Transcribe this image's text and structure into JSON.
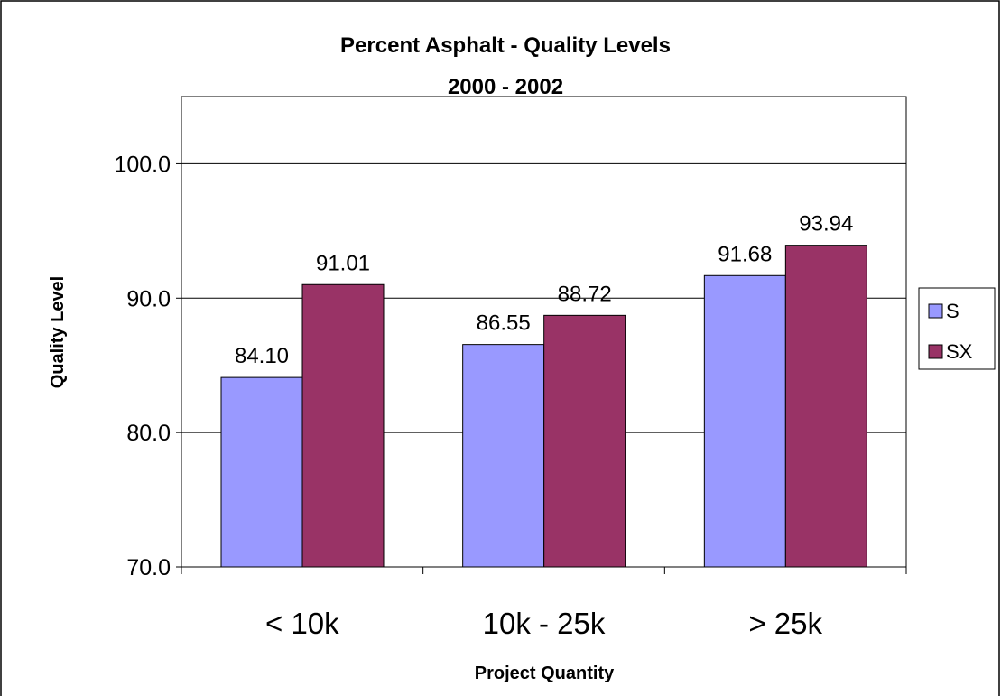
{
  "chart_data": {
    "type": "bar",
    "title": "Percent Asphalt - Quality Levels",
    "subtitle": "2000 - 2002",
    "xlabel": "Project Quantity",
    "ylabel": "Quality Level",
    "categories": [
      "< 10k",
      "10k - 25k",
      "> 25k"
    ],
    "series": [
      {
        "name": "S",
        "values": [
          84.1,
          86.55,
          91.68
        ],
        "labels": [
          "84.10",
          "86.55",
          "91.68"
        ],
        "color": "#9999ff"
      },
      {
        "name": "SX",
        "values": [
          91.01,
          88.72,
          93.94
        ],
        "labels": [
          "91.01",
          "88.72",
          "93.94"
        ],
        "color": "#993366"
      }
    ],
    "ylim": [
      70,
      105
    ],
    "yticks": [
      70,
      80,
      90,
      100
    ],
    "ytick_labels": [
      "70.0",
      "80.0",
      "90.0",
      "100.0"
    ],
    "grid": true,
    "legend_position": "right"
  }
}
